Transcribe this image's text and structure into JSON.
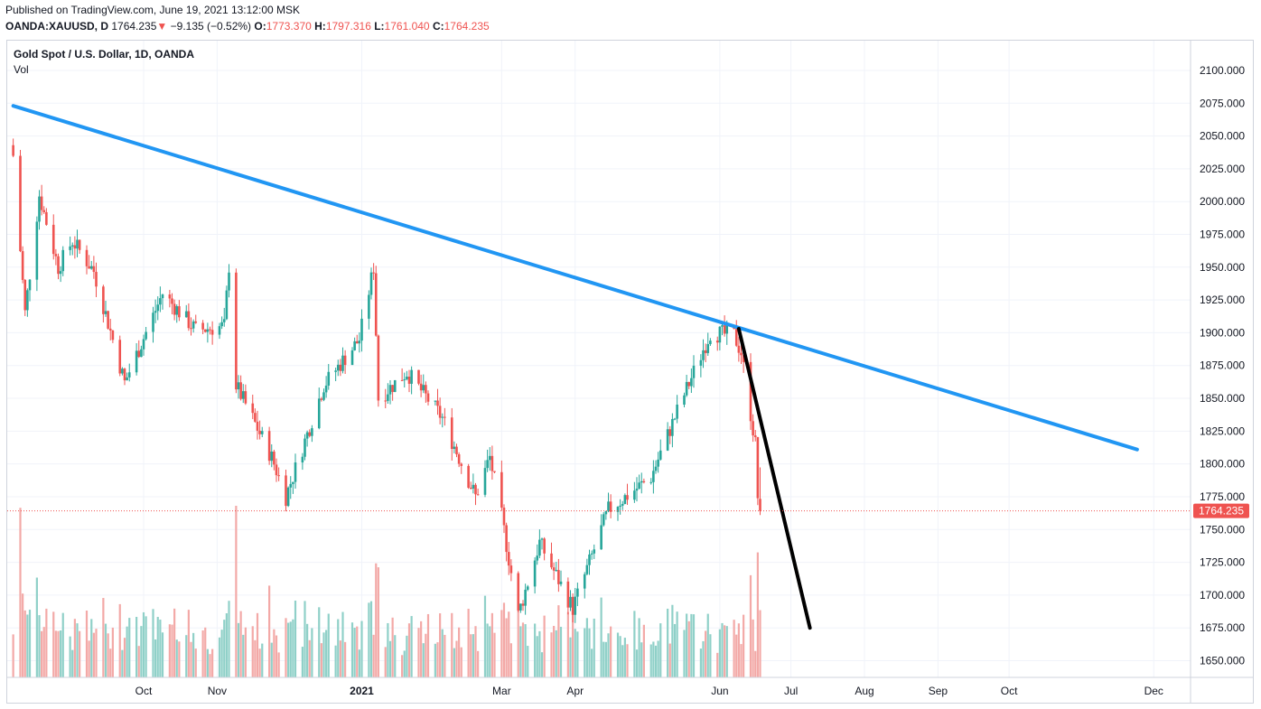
{
  "header": {
    "published": "Published on TradingView.com, June 19, 2021 13:12:00 MSK",
    "symbol": "OANDA:XAUUSD, D",
    "last": "1764.235",
    "arrow": "▼",
    "change": "−9.135 (−0.52%)",
    "o_label": "O:",
    "o_value": "1773.370",
    "h_label": "H:",
    "h_value": "1797.316",
    "l_label": "L:",
    "l_value": "1761.040",
    "c_label": "C:",
    "c_value": "1764.235"
  },
  "legend": {
    "title": "Gold Spot / U.S. Dollar, 1D, OANDA",
    "volume": "Vol"
  },
  "colors": {
    "up": "#26a69a",
    "down": "#ef5350",
    "up_volume": "#8fd0c8",
    "down_volume": "#f3a9a7",
    "trendline": "#2196f3",
    "projection": "#000000",
    "price_marker": "#ef5350",
    "grid": "#f0f3fa"
  },
  "chart_data": {
    "type": "candlestick",
    "title": "Gold Spot / U.S. Dollar, 1D, OANDA",
    "price_ticks": [
      2100,
      2075,
      2050,
      2025,
      2000,
      1975,
      1950,
      1925,
      1900,
      1875,
      1850,
      1825,
      1800,
      1775,
      1750,
      1725,
      1700,
      1675,
      1650
    ],
    "price_tick_labels": [
      "2100.000",
      "2075.000",
      "2050.000",
      "2025.000",
      "2000.000",
      "1975.000",
      "1950.000",
      "1925.000",
      "1900.000",
      "1875.000",
      "1850.000",
      "1825.000",
      "1800.000",
      "1775.000",
      "1750.000",
      "1725.000",
      "1700.000",
      "1675.000",
      "1650.000"
    ],
    "ylim": [
      1639,
      2112
    ],
    "time_ticks": [
      {
        "date": "2020-10-01",
        "label": "Oct"
      },
      {
        "date": "2020-11-01",
        "label": "Nov"
      },
      {
        "date": "2021-01-01",
        "label": "2021"
      },
      {
        "date": "2021-03-01",
        "label": "Mar"
      },
      {
        "date": "2021-04-01",
        "label": "Apr"
      },
      {
        "date": "2021-06-01",
        "label": "Jun"
      },
      {
        "date": "2021-07-01",
        "label": "Jul"
      },
      {
        "date": "2021-08-01",
        "label": "Aug"
      },
      {
        "date": "2021-09-01",
        "label": "Sep"
      },
      {
        "date": "2021-10-01",
        "label": "Oct"
      },
      {
        "date": "2021-12-01",
        "label": "Dec"
      }
    ],
    "price_anchors": [
      {
        "date": "2020-08-07",
        "close": 2035
      },
      {
        "date": "2020-08-12",
        "close": 1915
      },
      {
        "date": "2020-08-18",
        "close": 2005
      },
      {
        "date": "2020-08-26",
        "close": 1950
      },
      {
        "date": "2020-09-01",
        "close": 1970
      },
      {
        "date": "2020-09-10",
        "close": 1947
      },
      {
        "date": "2020-09-23",
        "close": 1862
      },
      {
        "date": "2020-10-09",
        "close": 1930
      },
      {
        "date": "2020-10-23",
        "close": 1902
      },
      {
        "date": "2020-11-04",
        "close": 1905
      },
      {
        "date": "2020-11-06",
        "close": 1951
      },
      {
        "date": "2020-11-09",
        "close": 1860
      },
      {
        "date": "2020-11-24",
        "close": 1805
      },
      {
        "date": "2020-11-30",
        "close": 1775
      },
      {
        "date": "2020-12-16",
        "close": 1860
      },
      {
        "date": "2020-12-31",
        "close": 1895
      },
      {
        "date": "2021-01-06",
        "close": 1950
      },
      {
        "date": "2021-01-08",
        "close": 1850
      },
      {
        "date": "2021-01-20",
        "close": 1870
      },
      {
        "date": "2021-02-04",
        "close": 1835
      },
      {
        "date": "2021-02-18",
        "close": 1775
      },
      {
        "date": "2021-02-24",
        "close": 1805
      },
      {
        "date": "2021-03-01",
        "close": 1760
      },
      {
        "date": "2021-03-08",
        "close": 1685
      },
      {
        "date": "2021-03-17",
        "close": 1740
      },
      {
        "date": "2021-03-31",
        "close": 1690
      },
      {
        "date": "2021-04-15",
        "close": 1765
      },
      {
        "date": "2021-04-26",
        "close": 1780
      },
      {
        "date": "2021-05-03",
        "close": 1790
      },
      {
        "date": "2021-05-14",
        "close": 1840
      },
      {
        "date": "2021-05-28",
        "close": 1900
      },
      {
        "date": "2021-06-07",
        "close": 1898
      },
      {
        "date": "2021-06-10",
        "close": 1885
      },
      {
        "date": "2021-06-16",
        "close": 1815
      },
      {
        "date": "2021-06-17",
        "close": 1775
      },
      {
        "date": "2021-06-18",
        "close": 1764.235
      }
    ],
    "current_price": 1764.235,
    "current_price_label": "1764.235",
    "trendline": {
      "start": {
        "date": "2020-08-07",
        "price": 2073
      },
      "end": {
        "date": "2021-11-24",
        "price": 1811
      }
    },
    "projection_line": {
      "start": {
        "date": "2021-06-09",
        "price": 1903
      },
      "end": {
        "date": "2021-07-09",
        "price": 1675
      }
    },
    "volume_range": [
      0,
      100
    ],
    "grid": true,
    "legend_position": "top-left"
  }
}
